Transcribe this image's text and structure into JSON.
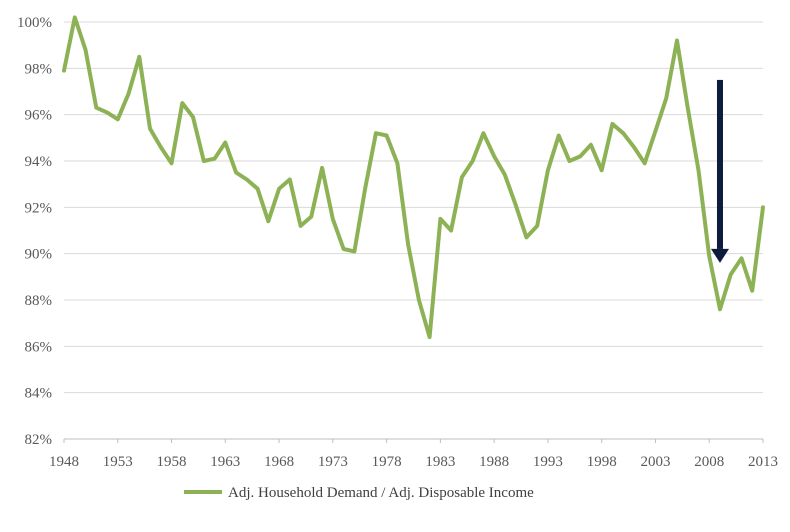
{
  "chart_data": {
    "type": "line",
    "title": "",
    "xlabel": "",
    "ylabel": "",
    "ylim": [
      82,
      100
    ],
    "xlim": [
      1948,
      2013
    ],
    "y_ticks": [
      "82%",
      "84%",
      "86%",
      "88%",
      "90%",
      "92%",
      "94%",
      "96%",
      "98%",
      "100%"
    ],
    "y_tick_values": [
      82,
      84,
      86,
      88,
      90,
      92,
      94,
      96,
      98,
      100
    ],
    "x_ticks": [
      "1948",
      "1953",
      "1958",
      "1963",
      "1968",
      "1973",
      "1978",
      "1983",
      "1988",
      "1993",
      "1998",
      "2003",
      "2008",
      "2013"
    ],
    "x_tick_values": [
      1948,
      1953,
      1958,
      1963,
      1968,
      1973,
      1978,
      1983,
      1988,
      1993,
      1998,
      2003,
      2008,
      2013
    ],
    "grid": "horizontal",
    "legend_position": "bottom",
    "series": [
      {
        "name": "Adj. Household Demand / Adj. Disposable Income",
        "color": "#8db256",
        "x": [
          1948,
          1949,
          1950,
          1951,
          1952,
          1953,
          1954,
          1955,
          1956,
          1957,
          1958,
          1959,
          1960,
          1961,
          1962,
          1963,
          1964,
          1965,
          1966,
          1967,
          1968,
          1969,
          1970,
          1971,
          1972,
          1973,
          1974,
          1975,
          1976,
          1977,
          1978,
          1979,
          1980,
          1981,
          1982,
          1983,
          1984,
          1985,
          1986,
          1987,
          1988,
          1989,
          1990,
          1991,
          1992,
          1993,
          1994,
          1995,
          1996,
          1997,
          1998,
          1999,
          2000,
          2001,
          2002,
          2003,
          2004,
          2005,
          2006,
          2007,
          2008,
          2009,
          2010,
          2011,
          2012,
          2013
        ],
        "values": [
          97.9,
          100.2,
          98.8,
          96.3,
          96.1,
          95.8,
          96.9,
          98.5,
          95.4,
          94.6,
          93.9,
          96.5,
          95.9,
          94.0,
          94.1,
          94.8,
          93.5,
          93.2,
          92.8,
          91.4,
          92.8,
          93.2,
          91.2,
          91.6,
          93.7,
          91.5,
          90.2,
          90.1,
          92.8,
          95.2,
          95.1,
          93.9,
          90.4,
          88.0,
          86.4,
          91.5,
          91.0,
          93.3,
          94.0,
          95.2,
          94.2,
          93.4,
          92.1,
          90.7,
          91.2,
          93.6,
          95.1,
          94.0,
          94.2,
          94.7,
          93.6,
          95.6,
          95.2,
          94.6,
          93.9,
          95.3,
          96.7,
          99.2,
          96.3,
          93.6,
          89.9,
          87.6,
          89.1,
          89.8,
          88.4,
          92.0
        ]
      }
    ],
    "annotations": [
      {
        "type": "arrow",
        "direction": "down",
        "color": "#0d1b3e",
        "x": 2009,
        "from_value": 97.5,
        "to_value": 89.6
      }
    ]
  }
}
